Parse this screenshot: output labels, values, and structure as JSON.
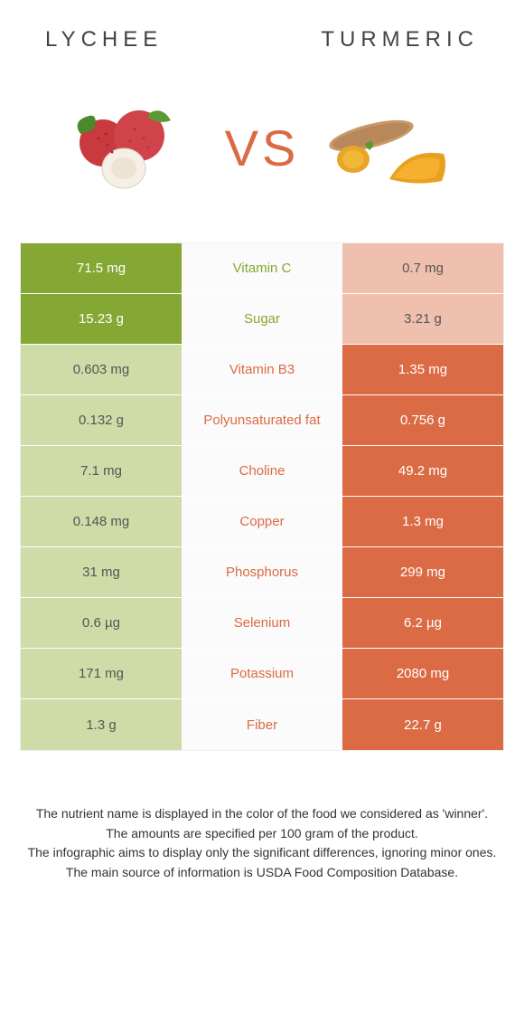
{
  "header": {
    "left_title": "Lychee",
    "right_title": "Turmeric"
  },
  "vs": {
    "label": "VS"
  },
  "colors": {
    "green": "#85a733",
    "green_light": "#d0dca8",
    "orange": "#db6b44",
    "orange_light": "#f0c0af",
    "mid_bg": "#fbfbfb"
  },
  "rows": [
    {
      "left": "71.5 mg",
      "nutrient": "Vitamin C",
      "right": "0.7 mg",
      "winner": "left"
    },
    {
      "left": "15.23 g",
      "nutrient": "Sugar",
      "right": "3.21 g",
      "winner": "left"
    },
    {
      "left": "0.603 mg",
      "nutrient": "Vitamin B3",
      "right": "1.35 mg",
      "winner": "right"
    },
    {
      "left": "0.132 g",
      "nutrient": "Polyunsaturated fat",
      "right": "0.756 g",
      "winner": "right"
    },
    {
      "left": "7.1 mg",
      "nutrient": "Choline",
      "right": "49.2 mg",
      "winner": "right"
    },
    {
      "left": "0.148 mg",
      "nutrient": "Copper",
      "right": "1.3 mg",
      "winner": "right"
    },
    {
      "left": "31 mg",
      "nutrient": "Phosphorus",
      "right": "299 mg",
      "winner": "right"
    },
    {
      "left": "0.6 µg",
      "nutrient": "Selenium",
      "right": "6.2 µg",
      "winner": "right"
    },
    {
      "left": "171 mg",
      "nutrient": "Potassium",
      "right": "2080 mg",
      "winner": "right"
    },
    {
      "left": "1.3 g",
      "nutrient": "Fiber",
      "right": "22.7 g",
      "winner": "right"
    }
  ],
  "notes": {
    "line1": "The nutrient name is displayed in the color of the food we considered as 'winner'.",
    "line2": "The amounts are specified per 100 gram of the product.",
    "line3": "The infographic aims to display only the significant differences, ignoring minor ones.",
    "line4": "The main source of information is USDA Food Composition Database."
  }
}
